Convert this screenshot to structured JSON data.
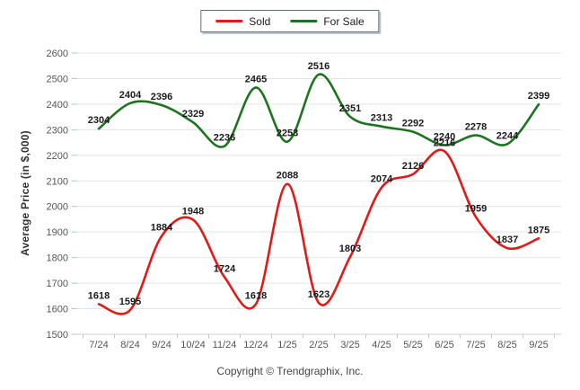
{
  "legend": {
    "items": [
      {
        "label": "Sold",
        "color": "#e11a17"
      },
      {
        "label": "For Sale",
        "color": "#1e741e"
      }
    ]
  },
  "y_axis_title": "Average Price (in $,000)",
  "footer": {
    "copyright": "Copyright © Trendgraphix, Inc."
  },
  "chart_data": {
    "type": "line",
    "categories": [
      "7/24",
      "8/24",
      "9/24",
      "10/24",
      "11/24",
      "12/24",
      "1/25",
      "2/25",
      "3/25",
      "4/25",
      "5/25",
      "6/25",
      "7/25",
      "8/25",
      "9/25"
    ],
    "series": [
      {
        "name": "Sold",
        "color": "#e11a17",
        "values": [
          1618,
          1595,
          1884,
          1948,
          1724,
          1618,
          2088,
          1623,
          1803,
          2074,
          2126,
          2216,
          1959,
          1837,
          1875
        ]
      },
      {
        "name": "For Sale",
        "color": "#1e741e",
        "values": [
          2304,
          2404,
          2396,
          2329,
          2236,
          2465,
          2253,
          2516,
          2351,
          2313,
          2292,
          2240,
          2278,
          2244,
          2399
        ]
      }
    ],
    "title": "",
    "xlabel": "",
    "ylabel": "Average Price (in $,000)",
    "ylim": [
      1500,
      2600
    ],
    "ytick_step": 100,
    "grid": true,
    "smooth_lines": true,
    "data_labels": true,
    "legend_position": "top"
  }
}
